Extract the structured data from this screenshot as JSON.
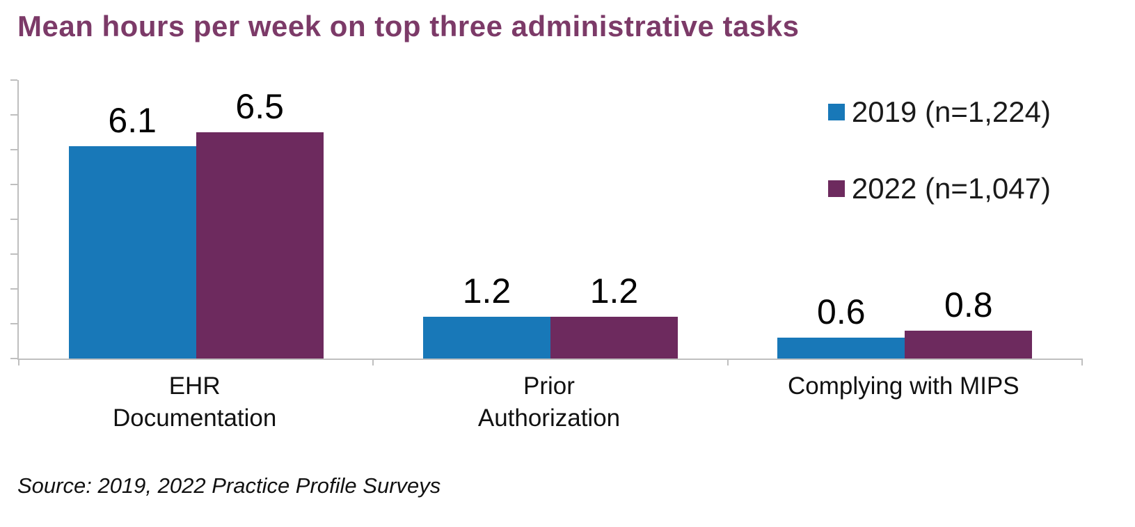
{
  "title": "Mean hours per week on top three administrative tasks",
  "source": "Source: 2019, 2022 Practice Profile Surveys",
  "colors": {
    "series_2019": "#1878b8",
    "series_2022": "#6d2a5e",
    "title": "#7c3a68",
    "axis": "#bfbfbf",
    "label_text": "#000000"
  },
  "legend": [
    {
      "label": "2019 (n=1,224)",
      "color": "#1878b8"
    },
    {
      "label": "2022 (n=1,047)",
      "color": "#6d2a5e"
    }
  ],
  "chart_data": {
    "type": "bar",
    "title": "Mean hours per week on top three administrative tasks",
    "categories": [
      "EHR\nDocumentation",
      "Prior\nAuthorization",
      "Complying with MIPS"
    ],
    "series": [
      {
        "name": "2019 (n=1,224)",
        "color": "#1878b8",
        "values": [
          6.1,
          1.2,
          0.6
        ]
      },
      {
        "name": "2022 (n=1,047)",
        "color": "#6d2a5e",
        "values": [
          6.5,
          1.2,
          0.8
        ]
      }
    ],
    "xlabel": "",
    "ylabel": "",
    "ylim": [
      0,
      8
    ],
    "grid": false,
    "legend_position": "top-right",
    "value_labels": true,
    "value_label_format": "one-decimal"
  }
}
